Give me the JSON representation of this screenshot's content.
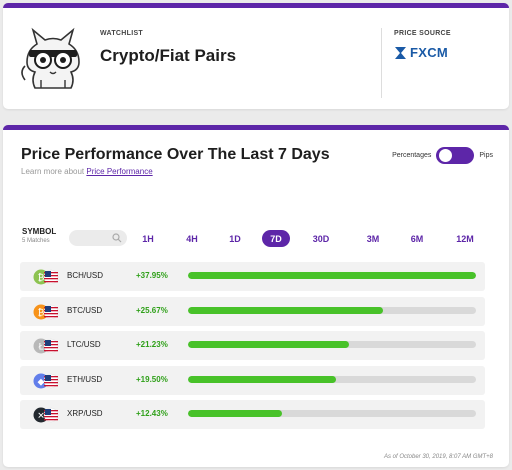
{
  "watchlist": {
    "label": "WATCHLIST",
    "title": "Crypto/Fiat Pairs"
  },
  "price_source": {
    "label": "PRICE SOURCE",
    "provider": "FXCM"
  },
  "performance": {
    "title": "Price Performance Over The Last 7 Days",
    "learn_prefix": "Learn more about",
    "learn_link": "Price Performance",
    "toggle_left": "Percentages",
    "toggle_right": "Pips",
    "toggle_state": "percentages",
    "symbol_header": "SYMBOL",
    "symbol_count": "5 Matches",
    "timeframes": [
      {
        "label": "1H",
        "active": false
      },
      {
        "label": "4H",
        "active": false
      },
      {
        "label": "1D",
        "active": false
      },
      {
        "label": "7D",
        "active": true
      },
      {
        "label": "30D",
        "active": false
      },
      {
        "label": "3M",
        "active": false
      },
      {
        "label": "6M",
        "active": false
      },
      {
        "label": "12M",
        "active": false
      }
    ],
    "rows": [
      {
        "pair": "BCH/USD",
        "change": "+37.95%",
        "value": 37.95,
        "coin_color": "#8dc351",
        "coin_glyph": "₿"
      },
      {
        "pair": "BTC/USD",
        "change": "+25.67%",
        "value": 25.67,
        "coin_color": "#f7931a",
        "coin_glyph": "₿"
      },
      {
        "pair": "LTC/USD",
        "change": "+21.23%",
        "value": 21.23,
        "coin_color": "#b8b8b8",
        "coin_glyph": "Ł"
      },
      {
        "pair": "ETH/USD",
        "change": "+19.50%",
        "value": 19.5,
        "coin_color": "#627eea",
        "coin_glyph": "◆"
      },
      {
        "pair": "XRP/USD",
        "change": "+12.43%",
        "value": 12.43,
        "coin_color": "#23292f",
        "coin_glyph": "✕"
      }
    ],
    "timestamp": "As of October 30, 2019, 8:07 AM GMT+8",
    "accent": "#5d26a8",
    "bar_color": "#48c229"
  }
}
